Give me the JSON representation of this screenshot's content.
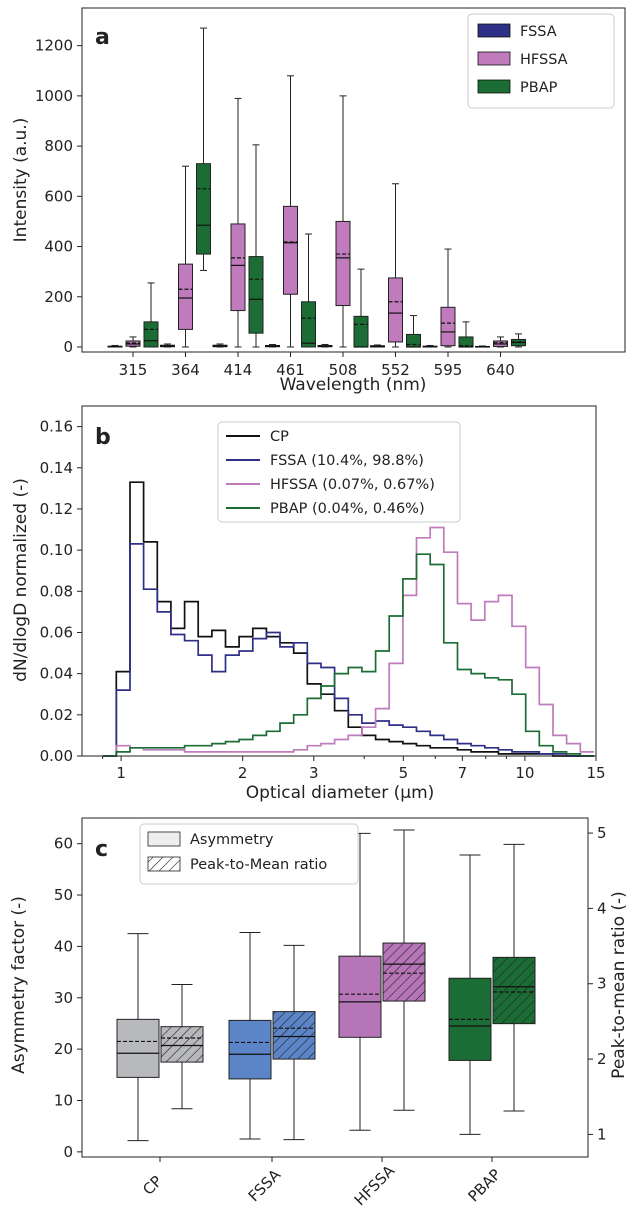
{
  "chart_data": [
    {
      "panel": "a",
      "type": "box",
      "xlabel": "Wavelength (nm)",
      "ylabel": "Intensity (a.u.)",
      "ylim": [
        -20,
        1350
      ],
      "yticks": [
        0,
        200,
        400,
        600,
        800,
        1000,
        1200
      ],
      "categories": [
        "315",
        "364",
        "414",
        "461",
        "508",
        "552",
        "595",
        "640"
      ],
      "legend": {
        "position": "top-right",
        "entries": [
          "FSSA",
          "HFSSA",
          "PBAP"
        ]
      },
      "colors": {
        "FSSA": "#2e2f86",
        "HFSSA": "#c07bbd",
        "PBAP": "#1c6d35"
      },
      "series": [
        {
          "name": "FSSA",
          "boxes": [
            {
              "whislo": 0,
              "q1": 0,
              "med": 1,
              "mean": 2,
              "q3": 3,
              "whishi": 6
            },
            {
              "whislo": 0,
              "q1": 1,
              "med": 3,
              "mean": 5,
              "q3": 7,
              "whishi": 12
            },
            {
              "whislo": 0,
              "q1": 1,
              "med": 3,
              "mean": 5,
              "q3": 7,
              "whishi": 12
            },
            {
              "whislo": 0,
              "q1": 1,
              "med": 3,
              "mean": 4,
              "q3": 6,
              "whishi": 10
            },
            {
              "whislo": 0,
              "q1": 1,
              "med": 3,
              "mean": 4,
              "q3": 6,
              "whishi": 10
            },
            {
              "whislo": 0,
              "q1": 0,
              "med": 2,
              "mean": 3,
              "q3": 5,
              "whishi": 8
            },
            {
              "whislo": 0,
              "q1": 0,
              "med": 1,
              "mean": 2,
              "q3": 3,
              "whishi": 6
            },
            {
              "whislo": 0,
              "q1": 0,
              "med": 1,
              "mean": 1,
              "q3": 2,
              "whishi": 4
            }
          ]
        },
        {
          "name": "HFSSA",
          "boxes": [
            {
              "whislo": 0,
              "q1": 3,
              "med": 12,
              "mean": 16,
              "q3": 24,
              "whishi": 40
            },
            {
              "whislo": 0,
              "q1": 70,
              "med": 195,
              "mean": 230,
              "q3": 330,
              "whishi": 720
            },
            {
              "whislo": 0,
              "q1": 145,
              "med": 325,
              "mean": 355,
              "q3": 490,
              "whishi": 990
            },
            {
              "whislo": 0,
              "q1": 210,
              "med": 415,
              "mean": 418,
              "q3": 560,
              "whishi": 1080
            },
            {
              "whislo": 0,
              "q1": 165,
              "med": 355,
              "mean": 370,
              "q3": 500,
              "whishi": 1000
            },
            {
              "whislo": 0,
              "q1": 20,
              "med": 135,
              "mean": 180,
              "q3": 275,
              "whishi": 650
            },
            {
              "whislo": 0,
              "q1": 5,
              "med": 60,
              "mean": 95,
              "q3": 158,
              "whishi": 390
            },
            {
              "whislo": 0,
              "q1": 2,
              "med": 12,
              "mean": 17,
              "q3": 24,
              "whishi": 40
            }
          ]
        },
        {
          "name": "PBAP",
          "boxes": [
            {
              "whislo": 0,
              "q1": 0,
              "med": 25,
              "mean": 70,
              "q3": 100,
              "whishi": 255
            },
            {
              "whislo": 305,
              "q1": 370,
              "med": 485,
              "mean": 630,
              "q3": 730,
              "whishi": 1270
            },
            {
              "whislo": 0,
              "q1": 55,
              "med": 190,
              "mean": 270,
              "q3": 360,
              "whishi": 805
            },
            {
              "whislo": 0,
              "q1": 0,
              "med": 15,
              "mean": 115,
              "q3": 180,
              "whishi": 450
            },
            {
              "whislo": 0,
              "q1": 0,
              "med": 0,
              "mean": 90,
              "q3": 122,
              "whishi": 310
            },
            {
              "whislo": 0,
              "q1": 0,
              "med": 0,
              "mean": 10,
              "q3": 50,
              "whishi": 125
            },
            {
              "whislo": 0,
              "q1": 0,
              "med": 0,
              "mean": 5,
              "q3": 40,
              "whishi": 100
            },
            {
              "whislo": 0,
              "q1": 5,
              "med": 18,
              "mean": 20,
              "q3": 30,
              "whishi": 52
            }
          ]
        }
      ]
    },
    {
      "panel": "b",
      "type": "line",
      "step": true,
      "xscale": "log",
      "xlabel": "Optical diameter (µm)",
      "ylabel": "dN/dlogD normalized (-)",
      "xlim": [
        0.8,
        15
      ],
      "ylim": [
        0,
        0.17
      ],
      "xticks": [
        1,
        2,
        3,
        5,
        7,
        10,
        15
      ],
      "yticks": [
        0.0,
        0.02,
        0.04,
        0.06,
        0.08,
        0.1,
        0.12,
        0.14,
        0.16
      ],
      "legend": {
        "position": "top-center",
        "entries": [
          "CP",
          "FSSA (10.4%, 98.8%)",
          "HFSSA (0.07%, 0.67%)",
          "PBAP (0.04%, 0.46%)"
        ]
      },
      "bin_edges": [
        0.9,
        0.973,
        1.052,
        1.137,
        1.229,
        1.328,
        1.436,
        1.552,
        1.678,
        1.813,
        1.96,
        2.119,
        2.29,
        2.475,
        2.676,
        2.892,
        3.126,
        3.379,
        3.653,
        3.948,
        4.268,
        4.613,
        4.987,
        5.39,
        5.826,
        6.298,
        6.807,
        7.358,
        7.954,
        8.597,
        9.293,
        10.045,
        10.857,
        11.736,
        12.686,
        13.712,
        14.82
      ],
      "series": [
        {
          "name": "CP",
          "color": "#111111",
          "values": [
            0.0,
            0.041,
            0.133,
            0.104,
            0.075,
            0.062,
            0.075,
            0.058,
            0.061,
            0.053,
            0.058,
            0.062,
            0.058,
            0.055,
            0.05,
            0.035,
            0.03,
            0.022,
            0.014,
            0.01,
            0.008,
            0.007,
            0.006,
            0.005,
            0.004,
            0.004,
            0.003,
            0.002,
            0.002,
            0.001,
            0.001,
            0.001,
            0.001,
            0.0,
            0.0,
            0.0
          ]
        },
        {
          "name": "FSSA (10.4%, 98.8%)",
          "color": "#2e2f86",
          "values": [
            0.0,
            0.032,
            0.103,
            0.081,
            0.07,
            0.059,
            0.056,
            0.049,
            0.041,
            0.049,
            0.051,
            0.057,
            0.06,
            0.053,
            0.055,
            0.045,
            0.043,
            0.028,
            0.02,
            0.016,
            0.017,
            0.015,
            0.014,
            0.012,
            0.01,
            0.008,
            0.006,
            0.005,
            0.004,
            0.003,
            0.002,
            0.002,
            0.001,
            0.001,
            0.0,
            0.0
          ]
        },
        {
          "name": "HFSSA (0.07%, 0.67%)",
          "color": "#c07bbd",
          "values": [
            0.0,
            0.005,
            0.004,
            0.003,
            0.003,
            0.003,
            0.002,
            0.002,
            0.002,
            0.002,
            0.002,
            0.002,
            0.002,
            0.002,
            0.003,
            0.005,
            0.006,
            0.008,
            0.01,
            0.014,
            0.023,
            0.045,
            0.078,
            0.106,
            0.111,
            0.099,
            0.074,
            0.066,
            0.075,
            0.078,
            0.063,
            0.043,
            0.025,
            0.01,
            0.006,
            0.002
          ]
        },
        {
          "name": "PBAP (0.04%, 0.46%)",
          "color": "#1c6d35",
          "values": [
            0.0,
            0.002,
            0.004,
            0.004,
            0.004,
            0.004,
            0.005,
            0.005,
            0.006,
            0.007,
            0.008,
            0.01,
            0.012,
            0.016,
            0.02,
            0.028,
            0.034,
            0.04,
            0.043,
            0.041,
            0.051,
            0.068,
            0.086,
            0.098,
            0.093,
            0.055,
            0.042,
            0.04,
            0.038,
            0.037,
            0.03,
            0.012,
            0.005,
            0.002,
            0.001,
            0.0
          ]
        }
      ]
    },
    {
      "panel": "c",
      "type": "box",
      "ylabel": "Asymmetry factor (-)",
      "ylabel_right": "Peak-to-mean ratio (-)",
      "ylim": [
        -1,
        65
      ],
      "yticks": [
        0,
        10,
        20,
        30,
        40,
        50,
        60
      ],
      "ylim_right": [
        0.7,
        5.2
      ],
      "yticks_right": [
        1,
        2,
        3,
        4,
        5
      ],
      "categories": [
        "CP",
        "FSSA",
        "HFSSA",
        "PBAP"
      ],
      "colors": {
        "CP": "#b8b9bd",
        "FSSA": "#5b85c6",
        "HFSSA": "#b675b6",
        "PBAP": "#1c6d35"
      },
      "legend": {
        "position": "top-left",
        "entries": [
          "Asymmetry",
          "Peak-to-Mean ratio"
        ]
      },
      "series": [
        {
          "name": "Asymmetry",
          "axis": "left",
          "boxes": [
            {
              "whislo": 2.2,
              "q1": 14.5,
              "med": 19.2,
              "mean": 21.5,
              "q3": 25.8,
              "whishi": 42.5
            },
            {
              "whislo": 2.5,
              "q1": 14.2,
              "med": 19.0,
              "mean": 21.3,
              "q3": 25.6,
              "whishi": 42.7
            },
            {
              "whislo": 4.2,
              "q1": 22.3,
              "med": 29.2,
              "mean": 30.7,
              "q3": 38.1,
              "whishi": 62.0
            },
            {
              "whislo": 3.4,
              "q1": 17.8,
              "med": 24.5,
              "mean": 25.8,
              "q3": 33.8,
              "whishi": 57.8
            }
          ]
        },
        {
          "name": "Peak-to-Mean ratio",
          "axis": "right",
          "boxes": [
            {
              "whislo": 1.34,
              "q1": 1.96,
              "med": 2.18,
              "mean": 2.28,
              "q3": 2.43,
              "whishi": 2.99
            },
            {
              "whislo": 0.93,
              "q1": 2.0,
              "med": 2.3,
              "mean": 2.41,
              "q3": 2.63,
              "whishi": 3.51
            },
            {
              "whislo": 1.32,
              "q1": 2.77,
              "med": 3.26,
              "mean": 3.14,
              "q3": 3.54,
              "whishi": 5.04
            },
            {
              "whislo": 1.31,
              "q1": 2.47,
              "med": 2.96,
              "mean": 2.89,
              "q3": 3.35,
              "whishi": 4.85
            }
          ]
        }
      ]
    }
  ]
}
